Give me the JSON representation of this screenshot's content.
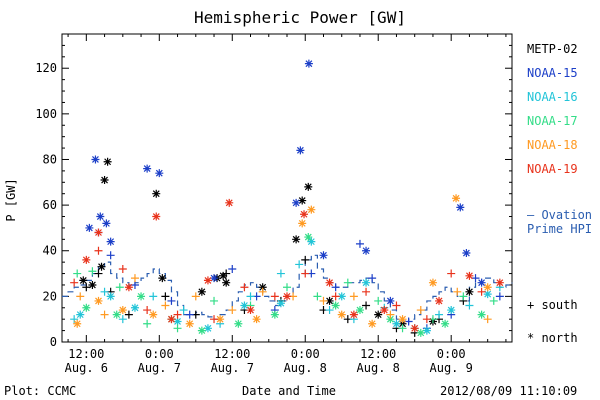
{
  "title": "Hemispheric Power [GW]",
  "footer": {
    "plot_credit": "Plot: CCMC",
    "xlabel": "Date and Time",
    "timestamp": "2012/08/09 11:10:09"
  },
  "legend": {
    "satellites": [
      {
        "name": "METP-02",
        "color": "#000000"
      },
      {
        "name": "NOAA-15",
        "color": "#1c3fc8"
      },
      {
        "name": "NOAA-16",
        "color": "#22c4d8"
      },
      {
        "name": "NOAA-17",
        "color": "#33dd88"
      },
      {
        "name": "NOAA-18",
        "color": "#ff9a22"
      },
      {
        "name": "NOAA-19",
        "color": "#e8331c"
      }
    ],
    "ovation_line1": "— Ovation",
    "ovation_line2": "Prime HPI",
    "ovation_color": "#2a5db0",
    "south_label": "+ south",
    "north_label": "* north"
  },
  "chart_data": {
    "type": "scatter",
    "title": "Hemispheric Power [GW]",
    "xlabel": "Date and Time",
    "ylabel": "P [GW]",
    "ylim": [
      0,
      135
    ],
    "yticks": [
      0,
      20,
      40,
      60,
      80,
      100,
      120
    ],
    "x_unit": "hours since Aug. 6 00:00",
    "xlim": [
      8,
      82
    ],
    "xticks": [
      {
        "x": 12,
        "time": "12:00",
        "date": "Aug. 6"
      },
      {
        "x": 24,
        "time": "0:00",
        "date": "Aug. 7"
      },
      {
        "x": 36,
        "time": "12:00",
        "date": "Aug. 7"
      },
      {
        "x": 48,
        "time": "0:00",
        "date": "Aug. 8"
      },
      {
        "x": 60,
        "time": "12:00",
        "date": "Aug. 8"
      },
      {
        "x": 72,
        "time": "0:00",
        "date": "Aug. 9"
      }
    ],
    "series": [
      {
        "name": "METP-02",
        "color": "#000000",
        "north": [
          [
            11.5,
            27
          ],
          [
            13,
            25
          ],
          [
            14.5,
            33
          ],
          [
            15,
            71
          ],
          [
            15.5,
            79
          ],
          [
            23.5,
            65
          ],
          [
            24.5,
            28
          ],
          [
            31,
            22
          ],
          [
            33.5,
            28
          ],
          [
            34.5,
            29
          ],
          [
            35,
            26
          ],
          [
            41,
            24
          ],
          [
            46.5,
            45
          ],
          [
            47.5,
            62
          ],
          [
            48.5,
            68
          ],
          [
            52,
            18
          ],
          [
            60,
            12
          ],
          [
            64,
            8
          ],
          [
            69,
            9
          ],
          [
            75,
            22
          ]
        ],
        "south": [
          [
            12,
            24
          ],
          [
            14,
            30
          ],
          [
            16,
            22
          ],
          [
            19,
            12
          ],
          [
            25,
            20
          ],
          [
            30,
            12
          ],
          [
            35,
            30
          ],
          [
            38,
            14
          ],
          [
            44,
            18
          ],
          [
            48,
            36
          ],
          [
            51,
            14
          ],
          [
            55,
            10
          ],
          [
            58,
            16
          ],
          [
            63,
            6
          ],
          [
            66,
            4
          ],
          [
            70,
            10
          ],
          [
            74,
            18
          ]
        ]
      },
      {
        "name": "NOAA-15",
        "color": "#1c3fc8",
        "north": [
          [
            12.5,
            50
          ],
          [
            13.5,
            80
          ],
          [
            14.3,
            55
          ],
          [
            15.3,
            52
          ],
          [
            16,
            44
          ],
          [
            22,
            76
          ],
          [
            24,
            74
          ],
          [
            33,
            28
          ],
          [
            46.5,
            61
          ],
          [
            47.2,
            84
          ],
          [
            48.6,
            122
          ],
          [
            51,
            38
          ],
          [
            58,
            40
          ],
          [
            62,
            18
          ],
          [
            73.5,
            59
          ],
          [
            74.5,
            39
          ],
          [
            77,
            26
          ]
        ],
        "south": [
          [
            14,
            48
          ],
          [
            16,
            38
          ],
          [
            20,
            25
          ],
          [
            26,
            18
          ],
          [
            29,
            12
          ],
          [
            36,
            32
          ],
          [
            40,
            20
          ],
          [
            43,
            14
          ],
          [
            49,
            30
          ],
          [
            53,
            24
          ],
          [
            57,
            43
          ],
          [
            59,
            28
          ],
          [
            65,
            9
          ],
          [
            68,
            6
          ],
          [
            72,
            12
          ],
          [
            76,
            28
          ],
          [
            80,
            20
          ]
        ]
      },
      {
        "name": "NOAA-16",
        "color": "#22c4d8",
        "north": [
          [
            11,
            12
          ],
          [
            16,
            20
          ],
          [
            20,
            15
          ],
          [
            27,
            9
          ],
          [
            32,
            6
          ],
          [
            38,
            16
          ],
          [
            44,
            17
          ],
          [
            49,
            44
          ],
          [
            54,
            20
          ],
          [
            58,
            26
          ],
          [
            63,
            8
          ],
          [
            68,
            5
          ],
          [
            72,
            14
          ],
          [
            78,
            21
          ]
        ],
        "south": [
          [
            10,
            10
          ],
          [
            15,
            22
          ],
          [
            18,
            10
          ],
          [
            23,
            20
          ],
          [
            28,
            14
          ],
          [
            34,
            8
          ],
          [
            39,
            20
          ],
          [
            44,
            30
          ],
          [
            47,
            34
          ],
          [
            52,
            14
          ],
          [
            56,
            10
          ],
          [
            61,
            15
          ],
          [
            66,
            6
          ],
          [
            70,
            12
          ],
          [
            75,
            16
          ],
          [
            80,
            24
          ]
        ]
      },
      {
        "name": "NOAA-17",
        "color": "#33dd88",
        "north": [
          [
            12,
            15
          ],
          [
            17,
            12
          ],
          [
            21,
            20
          ],
          [
            26,
            10
          ],
          [
            31,
            5
          ],
          [
            37,
            8
          ],
          [
            43,
            12
          ],
          [
            48.5,
            46
          ],
          [
            53,
            16
          ],
          [
            57,
            14
          ],
          [
            62,
            10
          ],
          [
            67,
            4
          ],
          [
            71,
            8
          ],
          [
            77,
            12
          ]
        ],
        "south": [
          [
            10.5,
            30
          ],
          [
            13,
            31
          ],
          [
            17.5,
            24
          ],
          [
            22,
            8
          ],
          [
            27,
            6
          ],
          [
            33,
            18
          ],
          [
            39,
            16
          ],
          [
            45,
            24
          ],
          [
            50,
            20
          ],
          [
            55,
            26
          ],
          [
            60,
            18
          ],
          [
            64,
            6
          ],
          [
            69,
            10
          ],
          [
            74,
            20
          ],
          [
            79,
            18
          ]
        ]
      },
      {
        "name": "NOAA-18",
        "color": "#ff9a22",
        "north": [
          [
            10.5,
            8
          ],
          [
            14,
            18
          ],
          [
            18,
            14
          ],
          [
            23,
            12
          ],
          [
            29,
            8
          ],
          [
            34,
            10
          ],
          [
            40,
            10
          ],
          [
            47.5,
            52
          ],
          [
            49,
            58
          ],
          [
            54,
            12
          ],
          [
            59,
            8
          ],
          [
            64,
            10
          ],
          [
            69,
            26
          ],
          [
            72.8,
            63
          ],
          [
            78,
            24
          ]
        ],
        "south": [
          [
            11,
            20
          ],
          [
            15,
            12
          ],
          [
            20,
            28
          ],
          [
            25,
            16
          ],
          [
            30,
            20
          ],
          [
            36,
            14
          ],
          [
            41,
            22
          ],
          [
            46,
            20
          ],
          [
            51,
            18
          ],
          [
            56,
            20
          ],
          [
            62,
            12
          ],
          [
            67,
            14
          ],
          [
            73,
            22
          ],
          [
            78,
            10
          ]
        ]
      },
      {
        "name": "NOAA-19",
        "color": "#e8331c",
        "north": [
          [
            12,
            36
          ],
          [
            14,
            48
          ],
          [
            19,
            24
          ],
          [
            23.5,
            55
          ],
          [
            26,
            10
          ],
          [
            32,
            27
          ],
          [
            35.5,
            61
          ],
          [
            39,
            14
          ],
          [
            45,
            20
          ],
          [
            47.8,
            56
          ],
          [
            52,
            26
          ],
          [
            56,
            12
          ],
          [
            61,
            14
          ],
          [
            66,
            6
          ],
          [
            70,
            18
          ],
          [
            75,
            29
          ],
          [
            80,
            26
          ]
        ],
        "south": [
          [
            10,
            26
          ],
          [
            14,
            40
          ],
          [
            18,
            32
          ],
          [
            22,
            14
          ],
          [
            27,
            12
          ],
          [
            33,
            10
          ],
          [
            38,
            24
          ],
          [
            43,
            20
          ],
          [
            48,
            30
          ],
          [
            53,
            20
          ],
          [
            58,
            22
          ],
          [
            63,
            16
          ],
          [
            68,
            10
          ],
          [
            72,
            30
          ],
          [
            77,
            22
          ]
        ]
      }
    ],
    "ovation_hpi": {
      "name": "Ovation Prime HPI",
      "color": "#2a5db0",
      "style": "dashed-steps",
      "x": [
        8,
        9,
        10,
        11,
        12,
        13,
        14,
        15,
        16,
        17,
        18,
        19,
        20,
        21,
        22,
        23,
        24,
        25,
        26,
        27,
        28,
        29,
        30,
        31,
        32,
        33,
        34,
        35,
        36,
        37,
        38,
        39,
        40,
        41,
        42,
        43,
        44,
        45,
        46,
        47,
        48,
        49,
        50,
        51,
        52,
        53,
        54,
        55,
        56,
        57,
        58,
        59,
        60,
        61,
        62,
        63,
        64,
        65,
        66,
        67,
        68,
        69,
        70,
        71,
        72,
        73,
        74,
        75,
        76,
        77,
        78,
        79,
        80,
        81,
        82
      ],
      "y": [
        20,
        22,
        24,
        25,
        27,
        30,
        33,
        35,
        30,
        28,
        26,
        25,
        26,
        28,
        30,
        32,
        30,
        27,
        22,
        16,
        12,
        12,
        13,
        12,
        11,
        10,
        12,
        14,
        18,
        22,
        25,
        26,
        24,
        20,
        18,
        16,
        18,
        20,
        24,
        30,
        36,
        38,
        32,
        28,
        26,
        24,
        24,
        26,
        26,
        27,
        28,
        26,
        22,
        18,
        14,
        10,
        8,
        10,
        12,
        14,
        18,
        20,
        22,
        24,
        22,
        20,
        18,
        24,
        26,
        28,
        28,
        26,
        24,
        25,
        26
      ]
    }
  }
}
